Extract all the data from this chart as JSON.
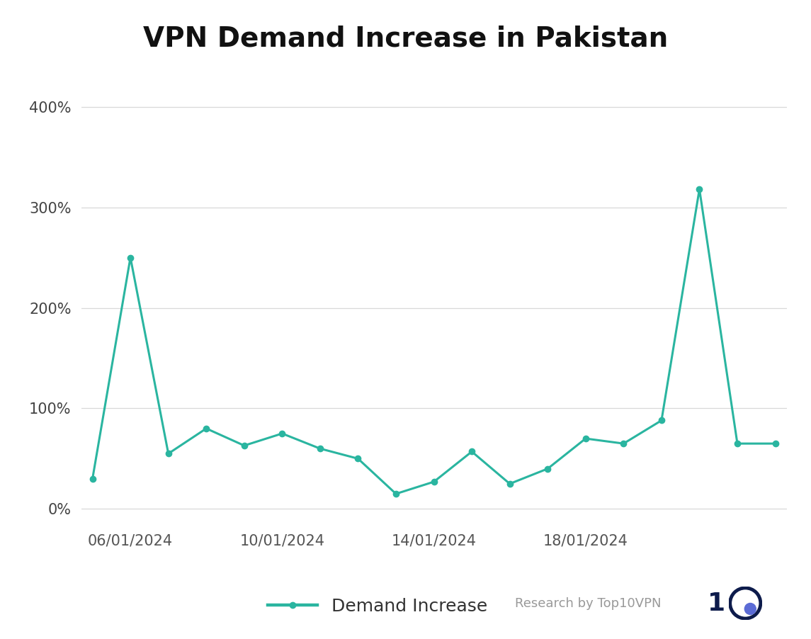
{
  "title": "VPN Demand Increase in Pakistan",
  "line_color": "#2ab5a0",
  "background_color": "#ffffff",
  "grid_color": "#d8d8d8",
  "dates": [
    "05/01/2024",
    "06/01/2024",
    "07/01/2024",
    "08/01/2024",
    "09/01/2024",
    "10/01/2024",
    "11/01/2024",
    "12/01/2024",
    "13/01/2024",
    "14/01/2024",
    "15/01/2024",
    "16/01/2024",
    "17/01/2024",
    "18/01/2024",
    "19/01/2024",
    "20/01/2024",
    "21/01/2024",
    "22/01/2024",
    "23/01/2024"
  ],
  "values": [
    30,
    250,
    55,
    80,
    63,
    75,
    60,
    50,
    15,
    27,
    57,
    25,
    40,
    70,
    65,
    88,
    318,
    65,
    65
  ],
  "x_ticks_labels": [
    "06/01/2024",
    "10/01/2024",
    "14/01/2024",
    "18/01/2024"
  ],
  "x_ticks_positions": [
    1,
    5,
    9,
    13
  ],
  "yticks": [
    0,
    100,
    200,
    300,
    400
  ],
  "ylim": [
    -15,
    430
  ],
  "xlim_left": -0.3,
  "xlim_right": 18.3,
  "legend_label": "Demand Increase",
  "marker_size": 6,
  "line_width": 2.2,
  "title_fontsize": 28,
  "tick_fontsize": 15,
  "legend_fontsize": 18,
  "watermark_text": "Research by Top10VPN",
  "watermark_fontsize": 13,
  "watermark_color": "#999999",
  "logo_color": "#0d1b4b",
  "logo_dot_color": "#5b6bd5"
}
